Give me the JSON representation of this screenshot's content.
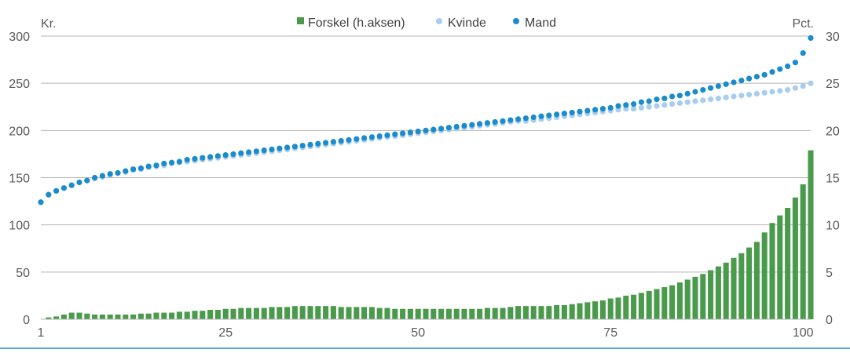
{
  "chart_data": {
    "type": "bar+scatter",
    "left_axis_unit": "Kr.",
    "right_axis_unit": "Pct.",
    "left_ylim": [
      0,
      300
    ],
    "right_ylim": [
      0,
      30
    ],
    "left_ticks": [
      "0",
      "50",
      "100",
      "150",
      "200",
      "250",
      "300"
    ],
    "right_ticks": [
      "0",
      "5",
      "10",
      "15",
      "20",
      "25",
      "30"
    ],
    "x_ticks": [
      "1",
      "25",
      "50",
      "75",
      "100"
    ],
    "grid": true,
    "legend_position": "top-center",
    "colors": {
      "bar": "#4a9a4c",
      "kvinde": "#a9cdee",
      "mand": "#1a8bcc",
      "grid": "#b4b4b4",
      "axis": "#1a8bcc",
      "text": "#595959"
    },
    "series": [
      {
        "name": "Forskel (h.aksen)",
        "type": "bar",
        "axis": "right",
        "values": [
          0.0,
          0.2,
          0.3,
          0.5,
          0.7,
          0.7,
          0.6,
          0.5,
          0.5,
          0.5,
          0.5,
          0.5,
          0.5,
          0.6,
          0.6,
          0.7,
          0.7,
          0.7,
          0.8,
          0.8,
          0.9,
          0.9,
          1.0,
          1.0,
          1.1,
          1.1,
          1.2,
          1.2,
          1.2,
          1.2,
          1.3,
          1.3,
          1.3,
          1.4,
          1.4,
          1.4,
          1.4,
          1.4,
          1.4,
          1.3,
          1.3,
          1.3,
          1.3,
          1.3,
          1.2,
          1.2,
          1.1,
          1.1,
          1.1,
          1.1,
          1.1,
          1.1,
          1.1,
          1.1,
          1.1,
          1.1,
          1.1,
          1.1,
          1.2,
          1.2,
          1.2,
          1.3,
          1.4,
          1.4,
          1.4,
          1.4,
          1.4,
          1.5,
          1.5,
          1.6,
          1.7,
          1.8,
          1.9,
          2.0,
          2.2,
          2.3,
          2.5,
          2.6,
          2.8,
          3.0,
          3.2,
          3.4,
          3.6,
          3.9,
          4.2,
          4.5,
          4.8,
          5.2,
          5.6,
          6.0,
          6.5,
          7.0,
          7.6,
          8.2,
          9.2,
          10.2,
          11.0,
          11.8,
          12.9,
          14.3,
          17.9
        ]
      },
      {
        "name": "Kvinde",
        "type": "scatter",
        "axis": "left",
        "values": [
          124,
          132,
          136,
          139,
          142,
          145,
          147,
          149,
          151,
          153,
          155,
          156,
          158,
          159,
          161,
          162,
          163,
          165,
          166,
          167,
          168,
          169,
          170,
          171,
          172,
          173,
          174,
          175,
          176,
          177,
          178,
          179,
          180,
          181,
          182,
          183,
          184,
          185,
          186,
          187,
          188,
          189,
          190,
          191,
          192,
          193,
          194,
          195,
          196,
          197,
          198,
          199,
          200,
          201,
          202,
          203,
          204,
          205,
          206,
          207,
          208,
          209,
          210,
          210,
          211,
          212,
          213,
          214,
          215,
          216,
          217,
          218,
          219,
          220,
          221,
          222,
          223,
          223,
          224,
          225,
          226,
          227,
          228,
          229,
          230,
          231,
          232,
          233,
          234,
          235,
          236,
          237,
          238,
          239,
          240,
          241,
          242,
          243,
          245,
          247,
          250
        ]
      },
      {
        "name": "Mand",
        "type": "scatter",
        "axis": "left",
        "values": [
          124,
          132,
          136,
          139,
          142,
          145,
          147,
          150,
          152,
          154,
          155,
          157,
          159,
          160,
          162,
          163,
          165,
          166,
          167,
          169,
          170,
          171,
          172,
          173,
          174,
          175,
          176,
          177,
          178,
          179,
          180,
          181,
          182,
          183,
          184,
          185,
          186,
          187,
          188,
          189,
          190,
          191,
          192,
          193,
          194,
          195,
          196,
          197,
          198,
          199,
          200,
          201,
          202,
          203,
          204,
          205,
          206,
          207,
          208,
          209,
          210,
          211,
          212,
          213,
          214,
          215,
          216,
          217,
          218,
          219,
          220,
          221,
          222,
          223,
          224,
          226,
          227,
          228,
          230,
          231,
          233,
          234,
          236,
          237,
          239,
          241,
          243,
          245,
          247,
          249,
          251,
          253,
          255,
          257,
          259,
          262,
          265,
          268,
          272,
          282,
          298
        ]
      }
    ]
  }
}
